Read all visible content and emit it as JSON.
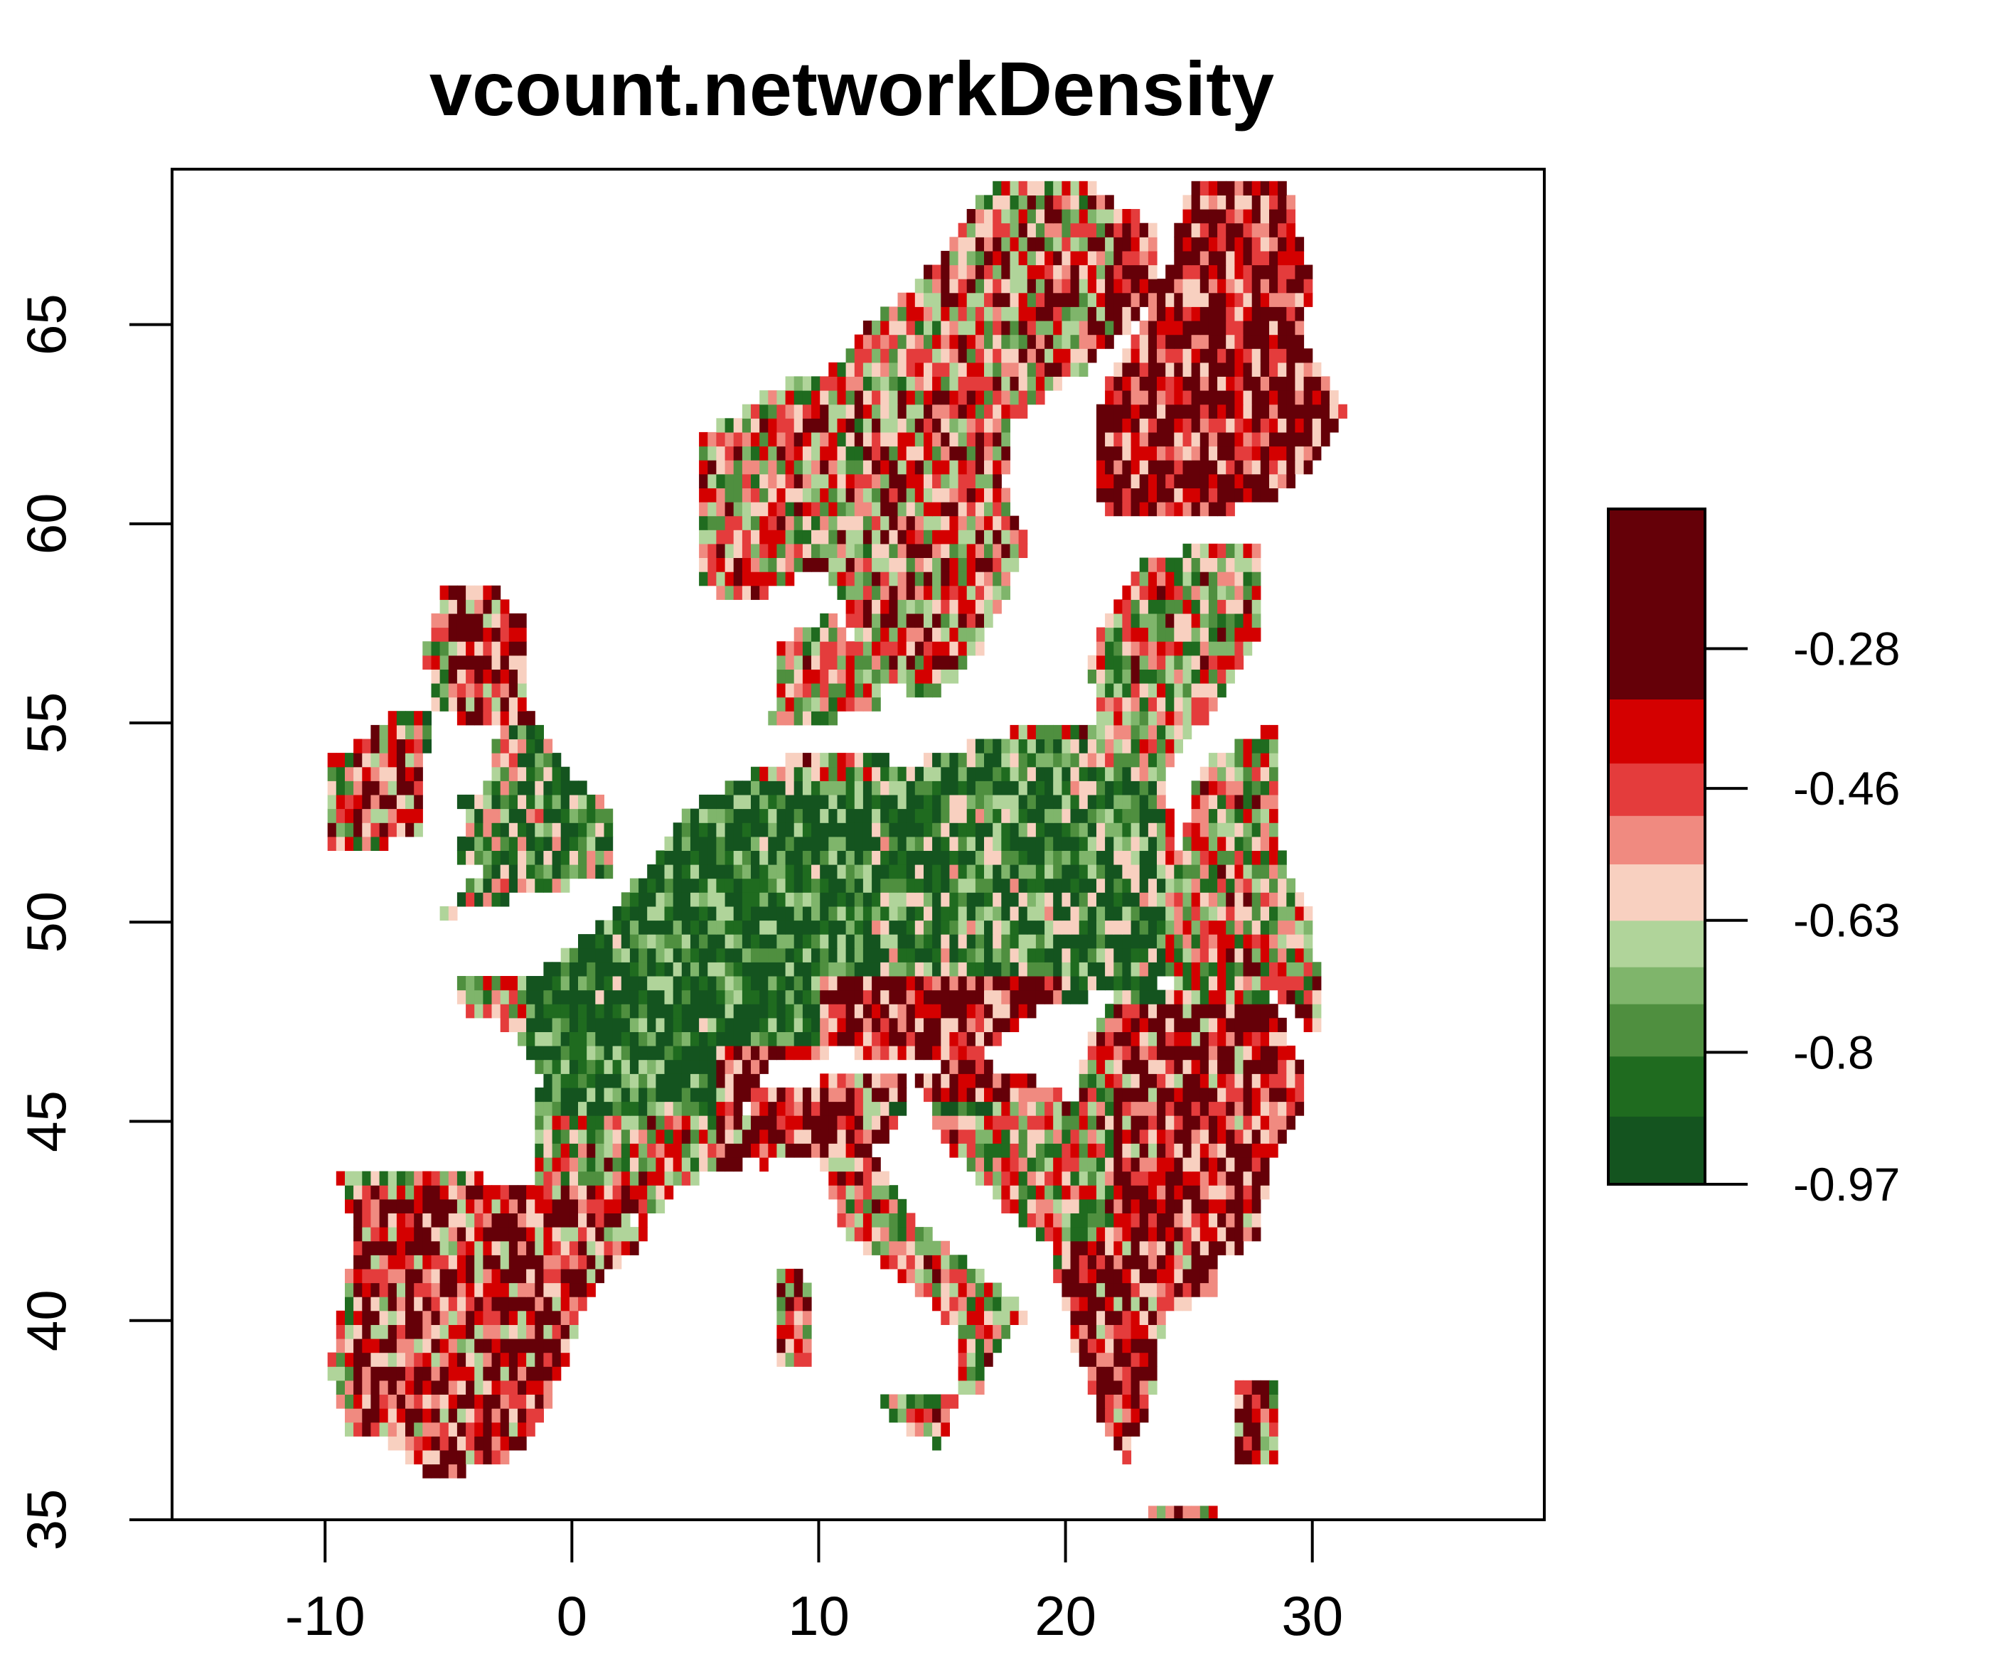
{
  "title": "vcount.networkDensity",
  "x_axis": {
    "ticks": [
      {
        "value": -10,
        "label": "-10"
      },
      {
        "value": 0,
        "label": "0"
      },
      {
        "value": 10,
        "label": "10"
      },
      {
        "value": 20,
        "label": "20"
      },
      {
        "value": 30,
        "label": "30"
      }
    ],
    "range": [
      -16.2,
      39.4
    ]
  },
  "y_axis": {
    "ticks": [
      {
        "value": 35,
        "label": "35"
      },
      {
        "value": 40,
        "label": "40"
      },
      {
        "value": 45,
        "label": "45"
      },
      {
        "value": 50,
        "label": "50"
      },
      {
        "value": 55,
        "label": "55"
      },
      {
        "value": 60,
        "label": "60"
      },
      {
        "value": 65,
        "label": "65"
      }
    ],
    "range": [
      35.0,
      68.9
    ]
  },
  "legend": {
    "range": [
      -0.97,
      -0.1
    ],
    "colors": [
      "#14541f",
      "#1f6b1f",
      "#4f8f3f",
      "#7fb56b",
      "#b0d49a",
      "#f8d0c0",
      "#f08a80",
      "#e43c3c",
      "#d40000",
      "#650008"
    ],
    "breaks": [
      -0.97,
      -0.8825,
      -0.805,
      -0.7375,
      -0.69,
      -0.63,
      -0.5575,
      -0.495,
      -0.4275,
      -0.345,
      -0.1
    ],
    "ticks": [
      {
        "value": -0.28,
        "label": "-0.28"
      },
      {
        "value": -0.46,
        "label": "-0.46"
      },
      {
        "value": -0.63,
        "label": "-0.63"
      },
      {
        "value": -0.8,
        "label": "-0.8"
      },
      {
        "value": -0.97,
        "label": "-0.97"
      }
    ]
  },
  "chart_data": {
    "type": "heatmap",
    "title": "vcount.networkDensity",
    "xlabel": "",
    "ylabel": "",
    "xlim": [
      -16.2,
      39.4
    ],
    "ylim": [
      35.0,
      68.9
    ],
    "value_range": [
      -0.97,
      -0.1
    ],
    "grid": false,
    "legend_placement": "right",
    "regions": [
      {
        "lon": [
          -10,
          31
        ],
        "lat": [
          35.5,
          68.5
        ],
        "value": -0.6
      },
      {
        "lon": [
          -2,
          17
        ],
        "lat": [
          45,
          53.5
        ],
        "value": -0.9
      },
      {
        "lon": [
          12,
          24
        ],
        "lat": [
          48,
          54.5
        ],
        "value": -0.82
      },
      {
        "lon": [
          -6,
          2
        ],
        "lat": [
          50.5,
          56
        ],
        "value": -0.75
      },
      {
        "lon": [
          -9,
          -6
        ],
        "lat": [
          52,
          55
        ],
        "value": -0.45
      },
      {
        "lon": [
          -5,
          -1
        ],
        "lat": [
          55,
          58.5
        ],
        "value": -0.4
      },
      {
        "lon": [
          -9,
          3
        ],
        "lat": [
          36,
          43.5
        ],
        "value": -0.42
      },
      {
        "lon": [
          6,
          13
        ],
        "lat": [
          43.5,
          47
        ],
        "value": -0.4
      },
      {
        "lon": [
          10,
          20
        ],
        "lat": [
          45.5,
          48.5
        ],
        "value": -0.35
      },
      {
        "lon": [
          12,
          19
        ],
        "lat": [
          38,
          45
        ],
        "value": -0.6
      },
      {
        "lon": [
          8,
          10
        ],
        "lat": [
          38.5,
          41.5
        ],
        "value": -0.5
      },
      {
        "lon": [
          20,
          28
        ],
        "lat": [
          36.5,
          42
        ],
        "value": -0.38
      },
      {
        "lon": [
          22,
          30
        ],
        "lat": [
          42,
          48
        ],
        "value": -0.37
      },
      {
        "lon": [
          5,
          12
        ],
        "lat": [
          58,
          63
        ],
        "value": -0.55
      },
      {
        "lon": [
          11,
          19
        ],
        "lat": [
          56,
          63.5
        ],
        "value": -0.5
      },
      {
        "lon": [
          21,
          31
        ],
        "lat": [
          60,
          68.5
        ],
        "value": -0.35
      },
      {
        "lon": [
          21,
          28
        ],
        "lat": [
          54,
          59.5
        ],
        "value": -0.6
      },
      {
        "lon": [
          15,
          22
        ],
        "lat": [
          63,
          68
        ],
        "value": -0.5
      }
    ]
  }
}
